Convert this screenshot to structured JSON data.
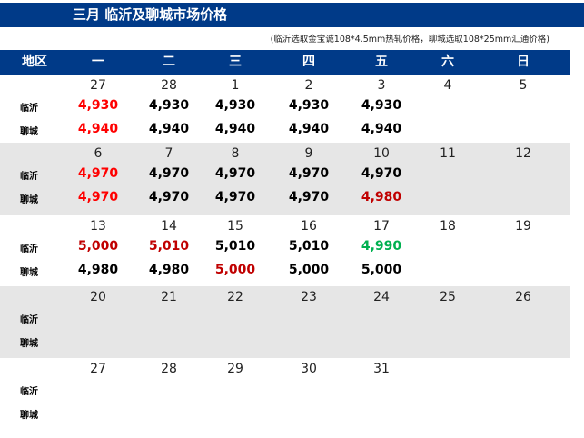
{
  "title": "三月  临沂及聊城市场价格",
  "note": "(临沂选取金宝诚108*4.5mm热轧价格，聊城选取108*25mm汇通价格)",
  "colors": {
    "header_bg": "#003a88",
    "stripe": "#e6e6e6",
    "red": "#ff0000",
    "darkred": "#c00000",
    "green": "#00b050",
    "black": "#000000"
  },
  "header": [
    "地区",
    "一",
    "二",
    "三",
    "四",
    "五",
    "六",
    "日"
  ],
  "row_labels": {
    "linyi": "临沂",
    "liaocheng": "聊城"
  },
  "weeks": [
    {
      "days": [
        "27",
        "28",
        "1",
        "2",
        "3",
        "4",
        "5"
      ],
      "linyi": [
        {
          "v": "4,930",
          "c": "red"
        },
        {
          "v": "4,930",
          "c": "black"
        },
        {
          "v": "4,930",
          "c": "black"
        },
        {
          "v": "4,930",
          "c": "black"
        },
        {
          "v": "4,930",
          "c": "black"
        }
      ],
      "liaocheng": [
        {
          "v": "4,940",
          "c": "red"
        },
        {
          "v": "4,940",
          "c": "black"
        },
        {
          "v": "4,940",
          "c": "black"
        },
        {
          "v": "4,940",
          "c": "black"
        },
        {
          "v": "4,940",
          "c": "black"
        }
      ]
    },
    {
      "days": [
        "6",
        "7",
        "8",
        "9",
        "10",
        "11",
        "12"
      ],
      "linyi": [
        {
          "v": "4,970",
          "c": "red"
        },
        {
          "v": "4,970",
          "c": "black"
        },
        {
          "v": "4,970",
          "c": "black"
        },
        {
          "v": "4,970",
          "c": "black"
        },
        {
          "v": "4,970",
          "c": "black"
        }
      ],
      "liaocheng": [
        {
          "v": "4,970",
          "c": "red"
        },
        {
          "v": "4,970",
          "c": "black"
        },
        {
          "v": "4,970",
          "c": "black"
        },
        {
          "v": "4,970",
          "c": "black"
        },
        {
          "v": "4,980",
          "c": "darkred"
        }
      ]
    },
    {
      "days": [
        "13",
        "14",
        "15",
        "16",
        "17",
        "18",
        "19"
      ],
      "linyi": [
        {
          "v": "5,000",
          "c": "darkred"
        },
        {
          "v": "5,010",
          "c": "darkred"
        },
        {
          "v": "5,010",
          "c": "black"
        },
        {
          "v": "5,010",
          "c": "black"
        },
        {
          "v": "4,990",
          "c": "green"
        }
      ],
      "liaocheng": [
        {
          "v": "4,980",
          "c": "black"
        },
        {
          "v": "4,980",
          "c": "black"
        },
        {
          "v": "5,000",
          "c": "darkred"
        },
        {
          "v": "5,000",
          "c": "black"
        },
        {
          "v": "5,000",
          "c": "black"
        }
      ]
    },
    {
      "days": [
        "20",
        "21",
        "22",
        "23",
        "24",
        "25",
        "26"
      ],
      "linyi": [],
      "liaocheng": []
    },
    {
      "days": [
        "27",
        "28",
        "29",
        "30",
        "31"
      ],
      "linyi": [],
      "liaocheng": []
    }
  ]
}
